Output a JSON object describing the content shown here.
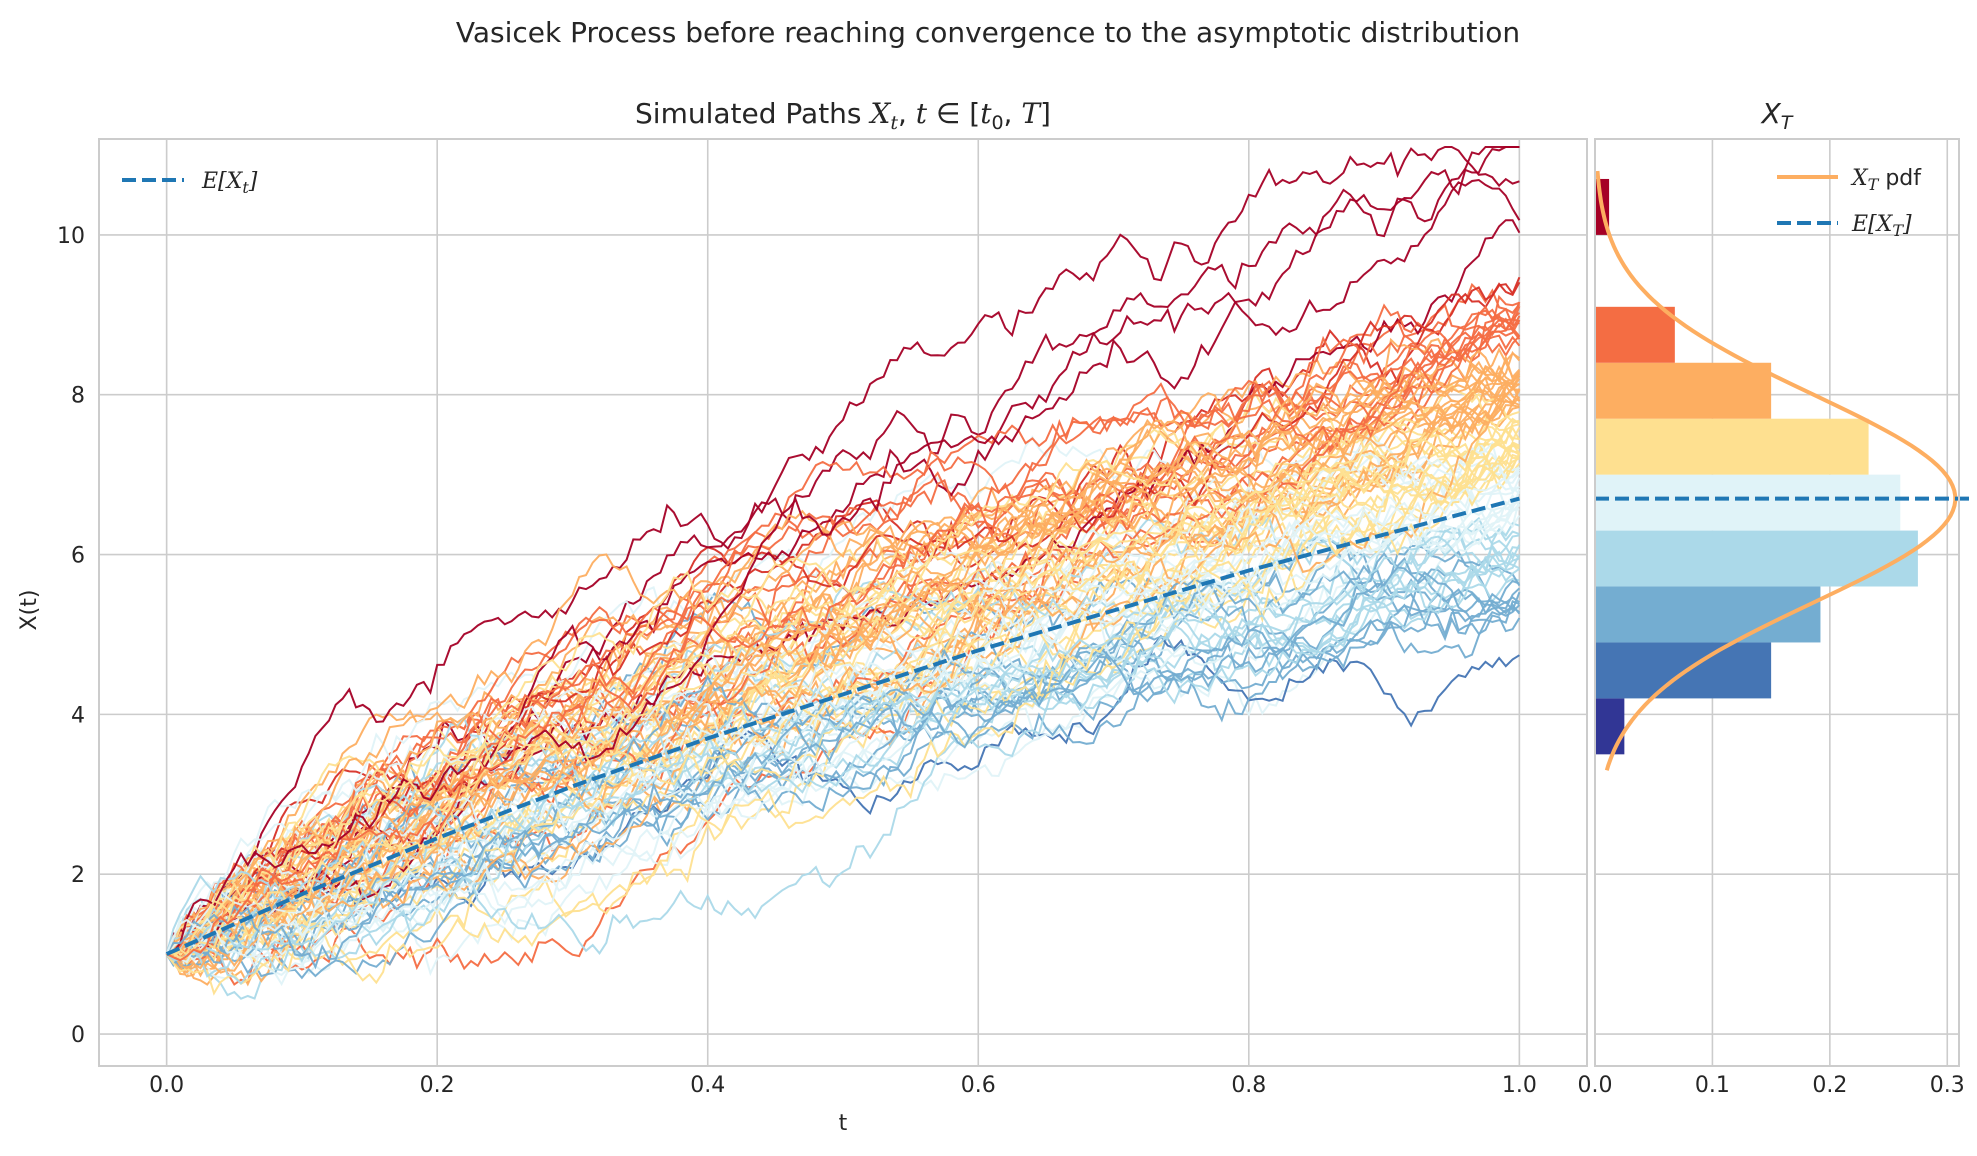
{
  "suptitle": "Vasicek Process before reaching convergence to the asymptotic distribution",
  "left_panel": {
    "title": "Simulated Paths X_t, t ∈ [t₀, T]",
    "xlabel": "t",
    "ylabel": "X(t)",
    "legend_label": "E[X_t]"
  },
  "right_panel": {
    "title": "X_T",
    "legend_pdf": "X_T pdf",
    "legend_mean": "E[X_T]"
  },
  "colors": {
    "mean_line": "#1f77b4",
    "pdf_line": "#fdae61",
    "grid": "#cccccc",
    "axes": "#cccccc",
    "path_palette": [
      "#313695",
      "#4575b4",
      "#74add1",
      "#abd9e9",
      "#e0f3f8",
      "#fee090",
      "#fdae61",
      "#f46d43",
      "#d73027",
      "#a50026"
    ]
  },
  "chart_data": [
    {
      "type": "line",
      "description_ref": "left_panel",
      "xlim": [
        -0.05,
        1.05
      ],
      "ylim": [
        -0.4,
        11.2
      ],
      "xticks": [
        "0.0",
        "0.2",
        "0.4",
        "0.6",
        "0.8",
        "1.0"
      ],
      "yticks": [
        "0",
        "2",
        "4",
        "6",
        "8",
        "10"
      ],
      "grid": true,
      "legend_position": "top-left",
      "mean_series": {
        "x": [
          0.0,
          0.1,
          0.2,
          0.3,
          0.4,
          0.5,
          0.6,
          0.7,
          0.8,
          0.9,
          1.0
        ],
        "y": [
          1.0,
          1.75,
          2.45,
          3.1,
          3.7,
          4.25,
          4.8,
          5.3,
          5.8,
          6.25,
          6.7
        ]
      },
      "paths": {
        "count": 100,
        "start_value": 1.0,
        "final_value_range": [
          3.5,
          10.7
        ]
      }
    },
    {
      "type": "bar",
      "orientation": "horizontal",
      "description_ref": "right_panel",
      "xlim": [
        0.0,
        0.31
      ],
      "xticks": [
        "0.0",
        "0.1",
        "0.2",
        "0.3"
      ],
      "legend_position": "top-right",
      "bins": [
        {
          "y0": 3.5,
          "y1": 4.2,
          "density": 0.025,
          "color": "#313695"
        },
        {
          "y0": 4.2,
          "y1": 4.9,
          "density": 0.15,
          "color": "#4575b4"
        },
        {
          "y0": 4.9,
          "y1": 5.6,
          "density": 0.192,
          "color": "#74add1"
        },
        {
          "y0": 5.6,
          "y1": 6.3,
          "density": 0.275,
          "color": "#abd9e9"
        },
        {
          "y0": 6.3,
          "y1": 7.0,
          "density": 0.26,
          "color": "#e0f3f8"
        },
        {
          "y0": 7.0,
          "y1": 7.7,
          "density": 0.233,
          "color": "#fee090"
        },
        {
          "y0": 7.7,
          "y1": 8.4,
          "density": 0.15,
          "color": "#fdae61"
        },
        {
          "y0": 8.4,
          "y1": 9.1,
          "density": 0.068,
          "color": "#f46d43"
        },
        {
          "y0": 10.0,
          "y1": 10.7,
          "density": 0.012,
          "color": "#a50026"
        }
      ],
      "pdf": {
        "mean": 6.7,
        "sd": 1.3,
        "y_range": [
          3.3,
          10.8
        ]
      },
      "mean_value": 6.7
    }
  ]
}
